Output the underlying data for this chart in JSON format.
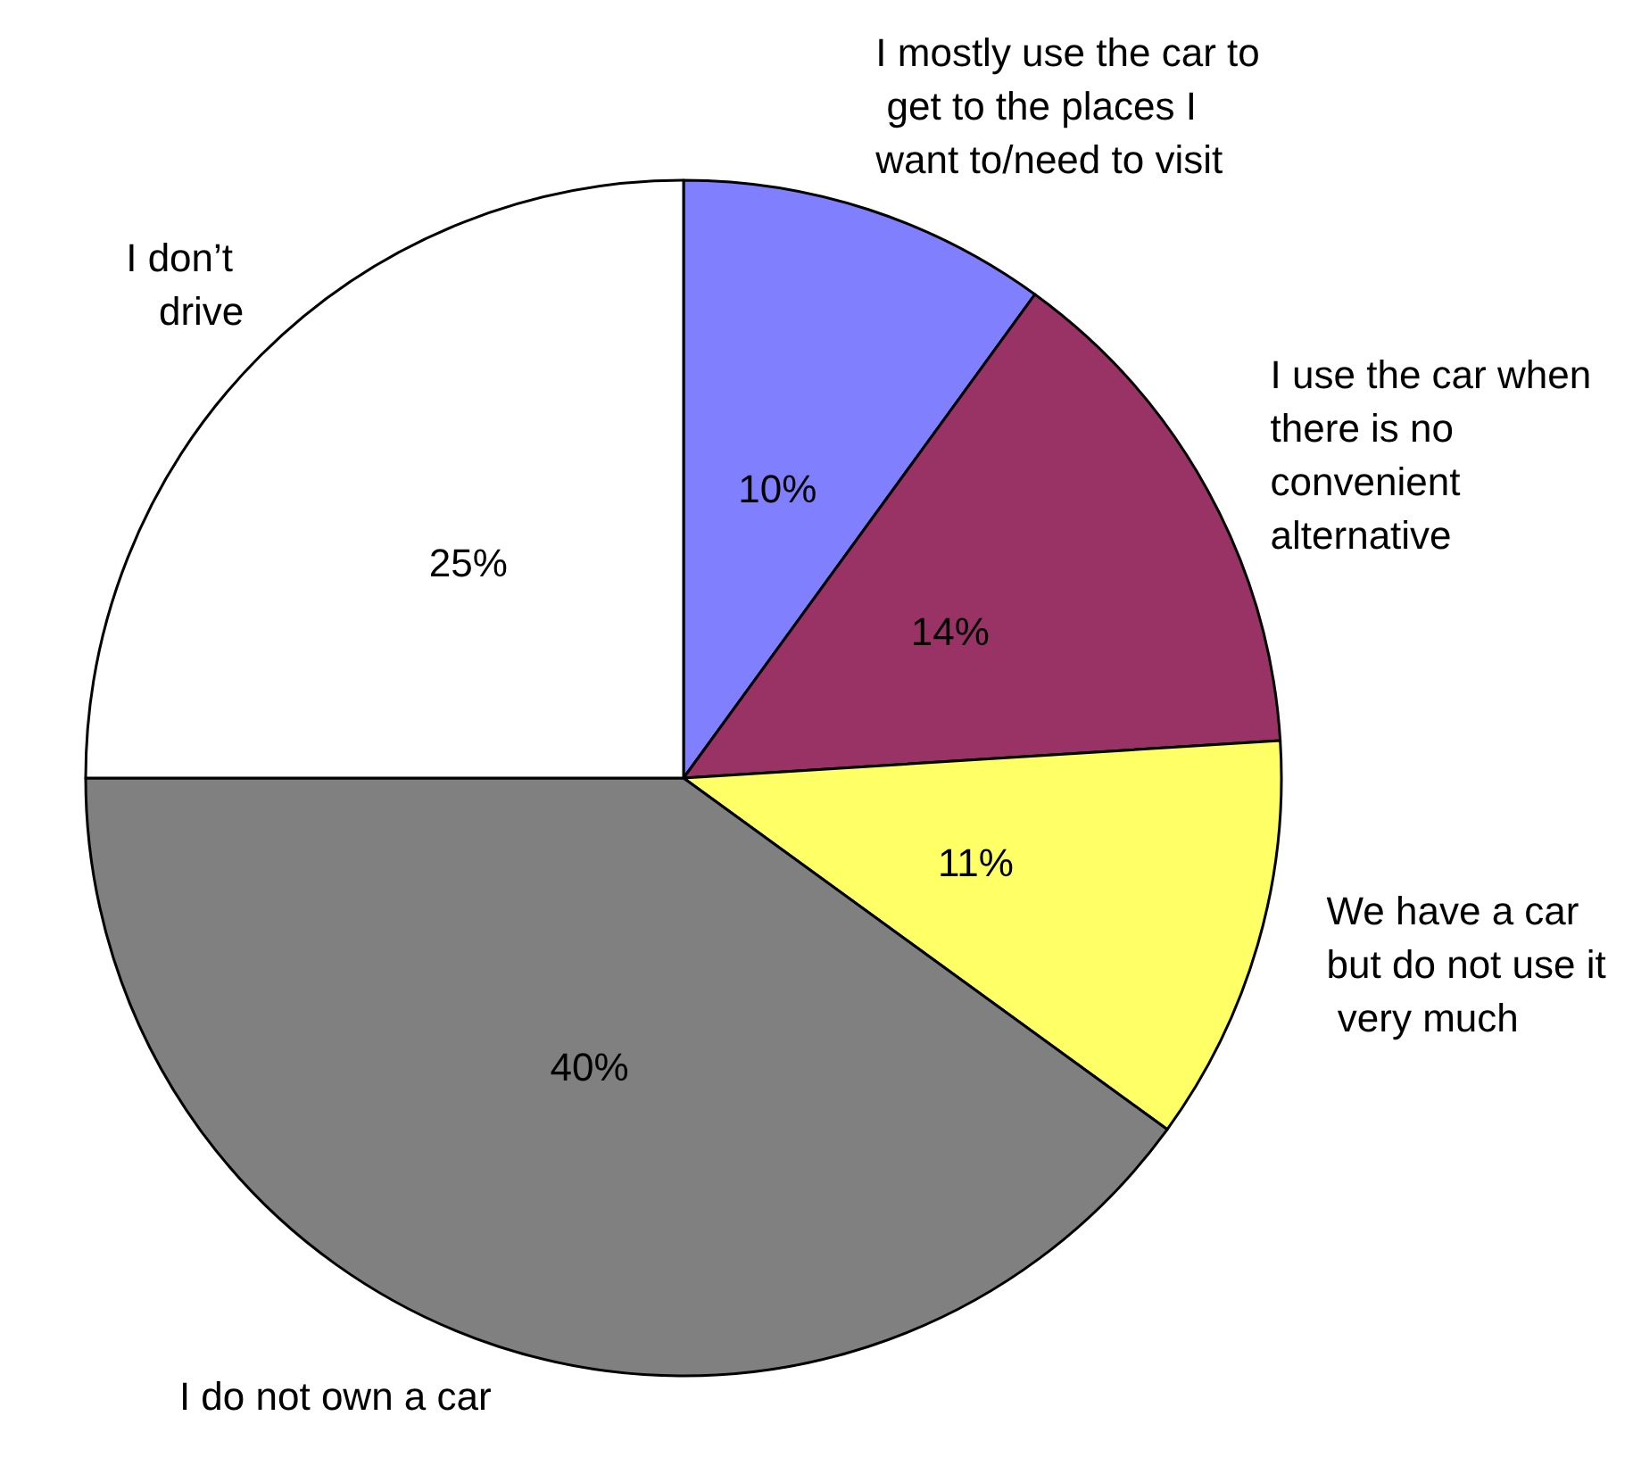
{
  "chart_data": {
    "type": "pie",
    "categories": [
      "I mostly use the car to get to the places I want to/need to visit",
      "I use the car when there is no convenient alternative",
      "We have a car but do not use it very much",
      "I do not own a car",
      "I don’t drive"
    ],
    "values": [
      10,
      14,
      11,
      40,
      25
    ],
    "colors": [
      "#8080ff",
      "#993366",
      "#ffff66",
      "#808080",
      "#ffffff"
    ],
    "value_labels": [
      "10%",
      "14%",
      "11%",
      "40%",
      "25%"
    ],
    "legend": false
  }
}
